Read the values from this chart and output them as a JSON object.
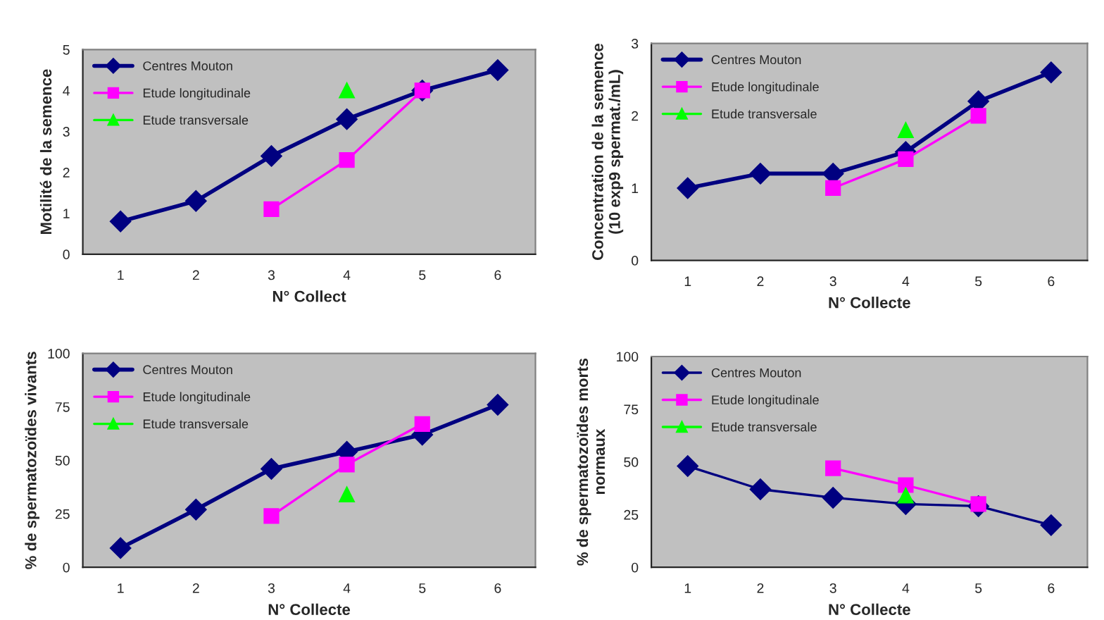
{
  "chart_data": [
    {
      "type": "line",
      "xlabel": "N° Collect",
      "ylabel": "Motilité de la semence",
      "categories": [
        "1",
        "2",
        "3",
        "4",
        "5",
        "6"
      ],
      "ylim": [
        0,
        5
      ],
      "yticks": [
        0,
        1,
        2,
        3,
        4,
        5
      ],
      "legend": "top left",
      "series": [
        {
          "name": "Centres Mouton",
          "color": "#000080",
          "marker": "diamond",
          "values": [
            0.8,
            1.3,
            2.4,
            3.3,
            4.0,
            4.5
          ]
        },
        {
          "name": "Etude longitudinale",
          "color": "#ff00ff",
          "marker": "square",
          "values": [
            null,
            null,
            1.1,
            2.3,
            4.0,
            null
          ]
        },
        {
          "name": "Etude transversale",
          "color": "#00ff00",
          "marker": "triangle",
          "values": [
            null,
            null,
            null,
            4.0,
            null,
            null
          ]
        }
      ]
    },
    {
      "type": "line",
      "xlabel": "N° Collecte",
      "ylabel": "Concentration de la semence\n(10 exp9 spermat./mL)",
      "categories": [
        "1",
        "2",
        "3",
        "4",
        "5",
        "6"
      ],
      "ylim": [
        0,
        3
      ],
      "yticks": [
        0,
        1,
        2,
        3
      ],
      "legend": "top left",
      "series": [
        {
          "name": "Centres Mouton",
          "color": "#000080",
          "marker": "diamond",
          "values": [
            1.0,
            1.2,
            1.2,
            1.5,
            2.2,
            2.6
          ]
        },
        {
          "name": "Etude longitudinale",
          "color": "#ff00ff",
          "marker": "square",
          "values": [
            null,
            null,
            1.0,
            1.4,
            2.0,
            null
          ]
        },
        {
          "name": "Etude transversale",
          "color": "#00ff00",
          "marker": "triangle",
          "values": [
            null,
            null,
            null,
            1.8,
            null,
            null
          ]
        }
      ]
    },
    {
      "type": "line",
      "xlabel": "N° Collecte",
      "ylabel": "% de spermatozoïdes vivants",
      "categories": [
        "1",
        "2",
        "3",
        "4",
        "5",
        "6"
      ],
      "ylim": [
        0,
        100
      ],
      "yticks": [
        0,
        25,
        50,
        75,
        100
      ],
      "legend": "top left",
      "series": [
        {
          "name": "Centres Mouton",
          "color": "#000080",
          "marker": "diamond",
          "values": [
            9,
            27,
            46,
            54,
            62,
            76
          ]
        },
        {
          "name": "Etude longitudinale",
          "color": "#ff00ff",
          "marker": "square",
          "values": [
            null,
            null,
            24,
            48,
            67,
            null
          ]
        },
        {
          "name": "Etude transversale",
          "color": "#00ff00",
          "marker": "triangle",
          "values": [
            null,
            null,
            null,
            34,
            null,
            null
          ]
        }
      ]
    },
    {
      "type": "line",
      "xlabel": "N° Collecte",
      "ylabel": "% de spermatozoïdes morts\nnormaux",
      "categories": [
        "1",
        "2",
        "3",
        "4",
        "5",
        "6"
      ],
      "ylim": [
        0,
        100
      ],
      "yticks": [
        0,
        25,
        50,
        75,
        100
      ],
      "legend": "top left",
      "series": [
        {
          "name": "Centres Mouton",
          "color": "#000080",
          "marker": "diamond",
          "values": [
            48,
            37,
            33,
            30,
            29,
            20
          ]
        },
        {
          "name": "Etude longitudinale",
          "color": "#ff00ff",
          "marker": "square",
          "values": [
            null,
            null,
            47,
            39,
            30,
            null
          ]
        },
        {
          "name": "Etude transversale",
          "color": "#00ff00",
          "marker": "triangle",
          "values": [
            null,
            null,
            null,
            34,
            null,
            null
          ]
        }
      ]
    }
  ]
}
